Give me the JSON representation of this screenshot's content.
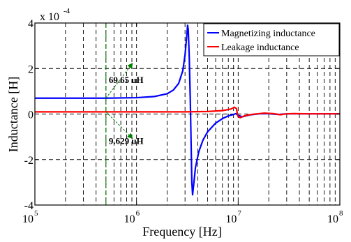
{
  "chart_data": {
    "type": "line",
    "xscale": "log",
    "xlim": [
      100000,
      100000000
    ],
    "ylim": [
      -0.0004,
      0.0004
    ],
    "y_multiplier_label": "x 10",
    "y_multiplier_exponent": "-4",
    "xlabel": "Frequency [Hz]",
    "ylabel": "Inductance [H]",
    "grid": true,
    "legend_position": "top-right",
    "x_ticks": [
      {
        "base": "10",
        "exp": "5"
      },
      {
        "base": "10",
        "exp": "6"
      },
      {
        "base": "10",
        "exp": "7"
      },
      {
        "base": "10",
        "exp": "8"
      }
    ],
    "y_ticks": [
      "-4",
      "-2",
      "0",
      "2",
      "4"
    ],
    "series": [
      {
        "name": "Magnetizing inductance",
        "color": "#0000ff",
        "points": [
          [
            100000,
            6.97e-05
          ],
          [
            500000,
            6.97e-05
          ],
          [
            1000000,
            7.18e-05
          ],
          [
            1500000,
            7.7e-05
          ],
          [
            2000000,
            8.9e-05
          ],
          [
            2300000,
            0.000105
          ],
          [
            2600000,
            0.000135
          ],
          [
            2850000,
            0.00019
          ],
          [
            3000000,
            0.00026
          ],
          [
            3100000,
            0.00033
          ],
          [
            3180000,
            0.00039
          ],
          [
            3230000,
            0.00037
          ],
          [
            3300000,
            0.00025
          ],
          [
            3380000,
            6e-05
          ],
          [
            3450000,
            -0.00015
          ],
          [
            3500000,
            -0.0003
          ],
          [
            3560000,
            -0.000355
          ],
          [
            3650000,
            -0.00031
          ],
          [
            3800000,
            -0.000235
          ],
          [
            4100000,
            -0.000165
          ],
          [
            4500000,
            -0.000115
          ],
          [
            5000000,
            -7.8e-05
          ],
          [
            6000000,
            -4e-05
          ],
          [
            7000000,
            -2e-05
          ],
          [
            8000000,
            -8e-06
          ],
          [
            9000000,
            -2e-06
          ],
          [
            9500000,
            2e-06
          ],
          [
            10000000,
            -6e-06
          ],
          [
            11000000,
            -1.2e-05
          ],
          [
            13000000,
            -4e-06
          ],
          [
            16000000,
            1e-06
          ],
          [
            20000000,
            1.5e-06
          ],
          [
            25000000,
            -2e-06
          ],
          [
            30000000,
            1e-06
          ],
          [
            40000000,
            1e-06
          ],
          [
            100000000,
            1e-06
          ]
        ]
      },
      {
        "name": "Leakage inductance",
        "color": "#ff0000",
        "points": [
          [
            100000,
            9.63e-06
          ],
          [
            1000000,
            9.63e-06
          ],
          [
            3000000,
            9.7e-06
          ],
          [
            5000000,
            1.12e-05
          ],
          [
            7000000,
            1.5e-05
          ],
          [
            8500000,
            2.2e-05
          ],
          [
            9200000,
            3e-05
          ],
          [
            9600000,
            2.4e-05
          ],
          [
            9800000,
            4e-06
          ],
          [
            10000000,
            -1.2e-05
          ],
          [
            10500000,
            -1.6e-05
          ],
          [
            11500000,
            -8e-06
          ],
          [
            14000000,
            -1e-06
          ],
          [
            18000000,
            4e-06
          ],
          [
            22000000,
            2e-06
          ],
          [
            26000000,
            -3e-06
          ],
          [
            30000000,
            1e-06
          ],
          [
            35000000,
            2e-06
          ],
          [
            50000000,
            1e-06
          ],
          [
            100000000,
            1e-06
          ]
        ]
      }
    ],
    "annotations": [
      {
        "text": "69.65 uH",
        "x": 500000,
        "y": 6.965e-05
      },
      {
        "text": "9.629 uH",
        "x": 500000,
        "y": 9.629e-06
      }
    ],
    "marker_x": 500000,
    "marker_color": "#008000"
  }
}
